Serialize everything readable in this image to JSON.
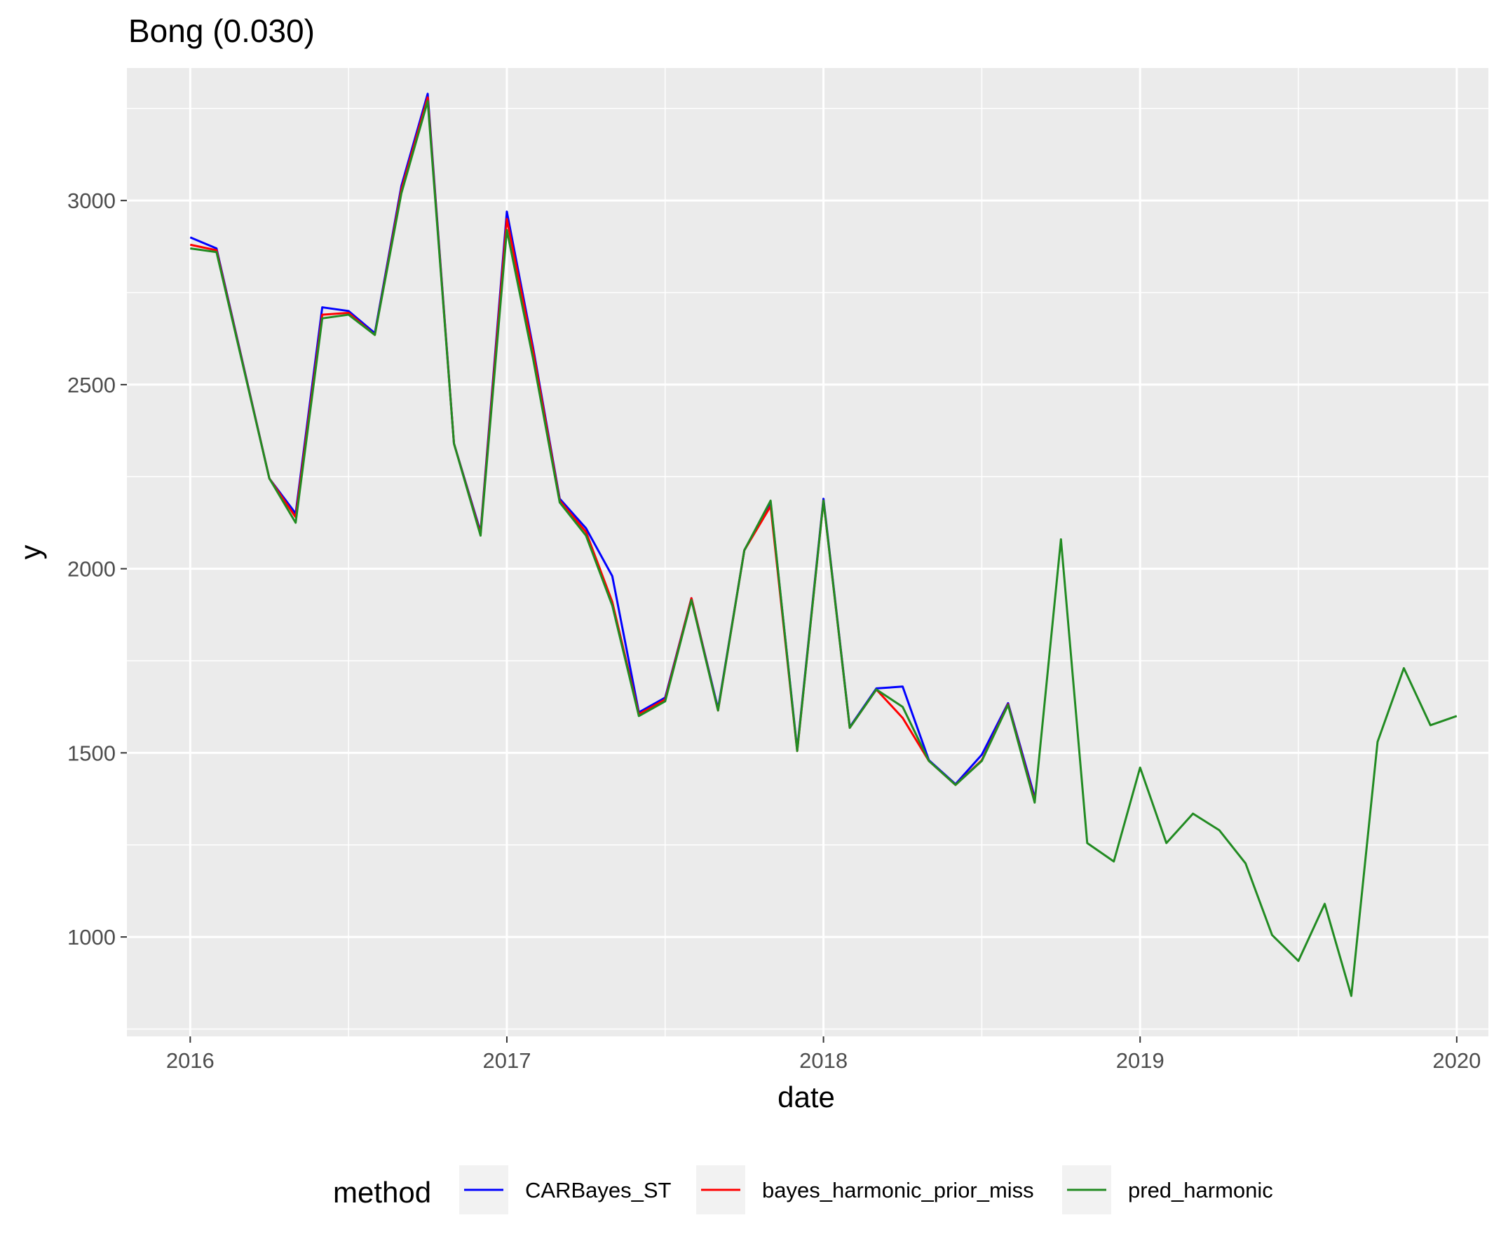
{
  "chart_data": {
    "type": "line",
    "title": "Bong (0.030)",
    "xlabel": "date",
    "ylabel": "y",
    "xlim": [
      2015.8,
      2020.1
    ],
    "ylim": [
      730,
      3360
    ],
    "x_ticks": [
      2016,
      2017,
      2018,
      2019,
      2020
    ],
    "x_tick_labels": [
      "2016",
      "2017",
      "2018",
      "2019",
      "2020"
    ],
    "y_ticks": [
      1000,
      1500,
      2000,
      2500,
      3000
    ],
    "y_tick_labels": [
      "1000",
      "1500",
      "2000",
      "2500",
      "3000"
    ],
    "grid": true,
    "background": "#ebebeb",
    "legend": {
      "title": "method",
      "placement": "bottom"
    },
    "series": [
      {
        "name": "CARBayes_ST",
        "color": "#0000ff",
        "points": [
          [
            2016.0,
            2900
          ],
          [
            2016.083,
            2870
          ],
          [
            2016.25,
            2245
          ],
          [
            2016.333,
            2150
          ],
          [
            2016.417,
            2710
          ],
          [
            2016.5,
            2700
          ],
          [
            2016.583,
            2640
          ],
          [
            2016.667,
            3040
          ],
          [
            2016.75,
            3290
          ],
          [
            2016.833,
            2340
          ],
          [
            2016.917,
            2100
          ],
          [
            2017.0,
            2970
          ],
          [
            2017.083,
            2600
          ],
          [
            2017.167,
            2190
          ],
          [
            2017.25,
            2110
          ],
          [
            2017.333,
            1980
          ],
          [
            2017.417,
            1610
          ],
          [
            2017.5,
            1650
          ],
          [
            2017.583,
            1920
          ],
          [
            2017.667,
            1620
          ],
          [
            2017.75,
            2050
          ],
          [
            2017.833,
            2180
          ],
          [
            2017.917,
            1510
          ],
          [
            2018.0,
            2190
          ],
          [
            2018.083,
            1570
          ],
          [
            2018.167,
            1675
          ],
          [
            2018.25,
            1680
          ],
          [
            2018.333,
            1480
          ],
          [
            2018.417,
            1415
          ],
          [
            2018.5,
            1495
          ],
          [
            2018.583,
            1635
          ],
          [
            2018.667,
            1380
          ]
        ]
      },
      {
        "name": "bayes_harmonic_prior_miss",
        "color": "#ff0000",
        "points": [
          [
            2016.0,
            2880
          ],
          [
            2016.083,
            2865
          ],
          [
            2016.25,
            2245
          ],
          [
            2016.333,
            2140
          ],
          [
            2016.417,
            2690
          ],
          [
            2016.5,
            2695
          ],
          [
            2016.583,
            2635
          ],
          [
            2016.667,
            3030
          ],
          [
            2016.75,
            3280
          ],
          [
            2016.833,
            2340
          ],
          [
            2016.917,
            2095
          ],
          [
            2017.0,
            2950
          ],
          [
            2017.083,
            2590
          ],
          [
            2017.167,
            2185
          ],
          [
            2017.25,
            2100
          ],
          [
            2017.333,
            1910
          ],
          [
            2017.417,
            1605
          ],
          [
            2017.5,
            1645
          ],
          [
            2017.583,
            1920
          ],
          [
            2017.667,
            1615
          ],
          [
            2017.75,
            2050
          ],
          [
            2017.833,
            2170
          ],
          [
            2017.917,
            1505
          ],
          [
            2018.0,
            2185
          ],
          [
            2018.083,
            1568
          ],
          [
            2018.167,
            1672
          ],
          [
            2018.25,
            1595
          ],
          [
            2018.333,
            1478
          ],
          [
            2018.417,
            1413
          ],
          [
            2018.5,
            1480
          ],
          [
            2018.583,
            1632
          ],
          [
            2018.667,
            1370
          ]
        ]
      },
      {
        "name": "pred_harmonic",
        "color": "#228b22",
        "points": [
          [
            2016.0,
            2870
          ],
          [
            2016.083,
            2860
          ],
          [
            2016.25,
            2245
          ],
          [
            2016.333,
            2125
          ],
          [
            2016.417,
            2680
          ],
          [
            2016.5,
            2690
          ],
          [
            2016.583,
            2635
          ],
          [
            2016.667,
            3020
          ],
          [
            2016.75,
            3270
          ],
          [
            2016.833,
            2340
          ],
          [
            2016.917,
            2090
          ],
          [
            2017.0,
            2920
          ],
          [
            2017.083,
            2570
          ],
          [
            2017.167,
            2180
          ],
          [
            2017.25,
            2090
          ],
          [
            2017.333,
            1900
          ],
          [
            2017.417,
            1600
          ],
          [
            2017.5,
            1640
          ],
          [
            2017.583,
            1915
          ],
          [
            2017.667,
            1615
          ],
          [
            2017.75,
            2050
          ],
          [
            2017.833,
            2185
          ],
          [
            2017.917,
            1505
          ],
          [
            2018.0,
            2185
          ],
          [
            2018.083,
            1568
          ],
          [
            2018.167,
            1672
          ],
          [
            2018.25,
            1625
          ],
          [
            2018.333,
            1478
          ],
          [
            2018.417,
            1413
          ],
          [
            2018.5,
            1478
          ],
          [
            2018.583,
            1630
          ],
          [
            2018.667,
            1365
          ],
          [
            2018.75,
            2080
          ],
          [
            2018.833,
            1255
          ],
          [
            2018.917,
            1205
          ],
          [
            2019.0,
            1460
          ],
          [
            2019.083,
            1255
          ],
          [
            2019.167,
            1335
          ],
          [
            2019.25,
            1290
          ],
          [
            2019.333,
            1200
          ],
          [
            2019.417,
            1005
          ],
          [
            2019.5,
            935
          ],
          [
            2019.583,
            1090
          ],
          [
            2019.667,
            840
          ],
          [
            2019.75,
            1530
          ],
          [
            2019.833,
            1730
          ],
          [
            2019.917,
            1575
          ],
          [
            2020.0,
            1600
          ]
        ]
      }
    ]
  }
}
